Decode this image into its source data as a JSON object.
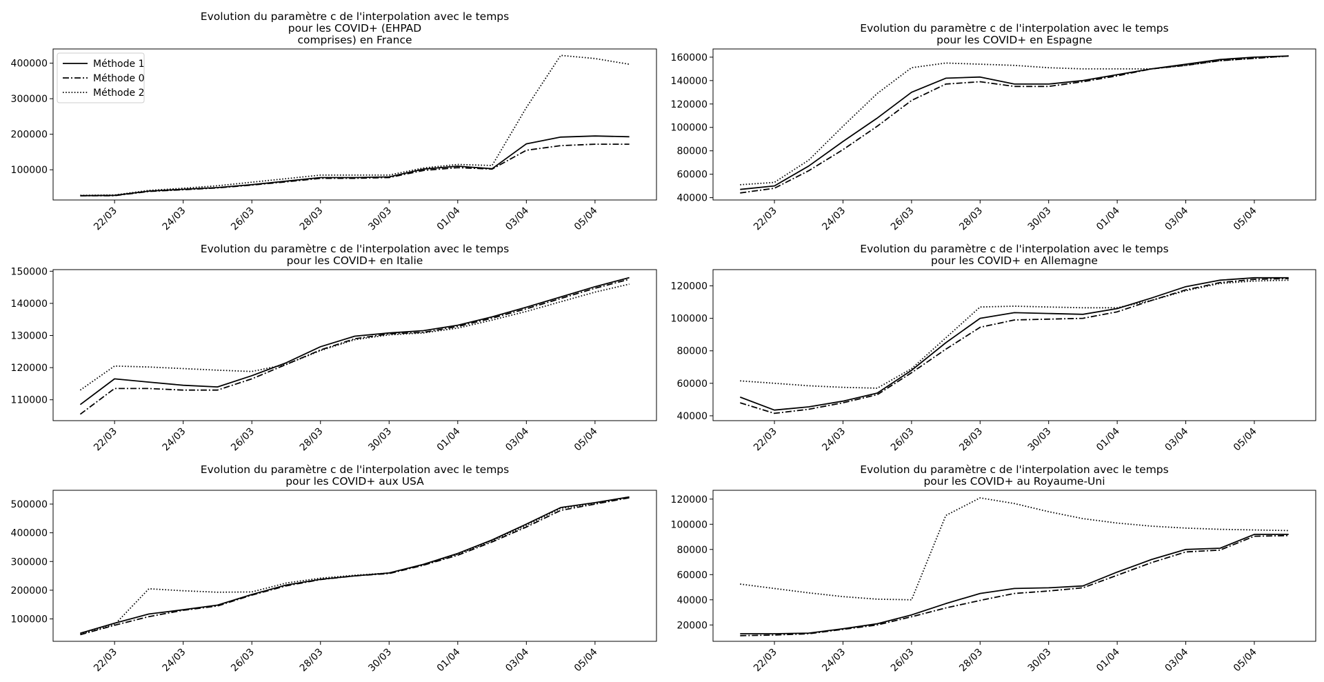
{
  "figure": {
    "legend_entries": [
      "Méthode 1",
      "Méthode 0",
      "Méthode 2"
    ],
    "line_color": "#000000"
  },
  "chart_data": [
    {
      "type": "line",
      "title": [
        "Evolution du paramètre c de l'interpolation avec le temps",
        "pour les COVID+ (EHPAD",
        "comprises) en France"
      ],
      "x_tick_labels": [
        "22/03",
        "24/03",
        "26/03",
        "28/03",
        "30/03",
        "01/04",
        "03/04",
        "05/04"
      ],
      "ylim": [
        15000,
        440000
      ],
      "yticks": [
        100000,
        200000,
        300000,
        400000
      ],
      "legend": "top-left",
      "series": [
        {
          "name": "Méthode 1",
          "style": "solid",
          "values": [
            27000,
            28000,
            40000,
            45000,
            50000,
            58000,
            68000,
            78000,
            78000,
            80000,
            102000,
            110000,
            103000,
            173000,
            192000,
            195000,
            193000
          ]
        },
        {
          "name": "Méthode 0",
          "style": "dashdot",
          "values": [
            27000,
            27000,
            39000,
            44000,
            49000,
            57000,
            66000,
            76000,
            76000,
            78000,
            98000,
            106000,
            102000,
            155000,
            168000,
            172000,
            172000
          ]
        },
        {
          "name": "Méthode 2",
          "style": "dotted",
          "values": [
            28000,
            29000,
            42000,
            48000,
            55000,
            65000,
            75000,
            85000,
            85000,
            85000,
            105000,
            115000,
            112000,
            275000,
            422000,
            413000,
            397000
          ]
        }
      ]
    },
    {
      "type": "line",
      "title": [
        "Evolution du paramètre c de l'interpolation avec le temps",
        "pour les COVID+  en Espagne"
      ],
      "x_tick_labels": [
        "22/03",
        "24/03",
        "26/03",
        "28/03",
        "30/03",
        "01/04",
        "03/04",
        "05/04"
      ],
      "ylim": [
        38000,
        167000
      ],
      "yticks": [
        40000,
        60000,
        80000,
        100000,
        120000,
        140000,
        160000
      ],
      "series": [
        {
          "name": "Méthode 1",
          "style": "solid",
          "values": [
            47000,
            50000,
            67000,
            88000,
            108000,
            130000,
            142000,
            143000,
            137000,
            137000,
            140000,
            145000,
            150000,
            154000,
            158000,
            160000,
            161000
          ]
        },
        {
          "name": "Méthode 0",
          "style": "dashdot",
          "values": [
            44000,
            48000,
            63000,
            81000,
            101000,
            123000,
            137000,
            139000,
            135000,
            135000,
            139000,
            144000,
            150000,
            153000,
            157000,
            159000,
            161000
          ]
        },
        {
          "name": "Méthode 2",
          "style": "dotted",
          "values": [
            51000,
            53000,
            72000,
            101000,
            129000,
            151000,
            155000,
            154000,
            153000,
            151000,
            150000,
            150000,
            150000,
            153000,
            157000,
            159000,
            161000
          ]
        }
      ]
    },
    {
      "type": "line",
      "title": [
        "Evolution du paramètre c de l'interpolation avec le temps",
        "pour les COVID+ en Italie"
      ],
      "x_tick_labels": [
        "22/03",
        "24/03",
        "26/03",
        "28/03",
        "30/03",
        "01/04",
        "03/04",
        "05/04"
      ],
      "ylim": [
        103500,
        150500
      ],
      "yticks": [
        110000,
        120000,
        130000,
        140000,
        150000
      ],
      "series": [
        {
          "name": "Méthode 1",
          "style": "solid",
          "values": [
            108500,
            116500,
            115500,
            114500,
            114000,
            117500,
            121500,
            126500,
            129800,
            130800,
            131500,
            133200,
            135800,
            138800,
            142000,
            145200,
            148000
          ]
        },
        {
          "name": "Méthode 0",
          "style": "dashdot",
          "values": [
            105500,
            113500,
            113500,
            113000,
            113000,
            116500,
            121000,
            125500,
            129000,
            130500,
            131000,
            132800,
            135400,
            138300,
            141500,
            144700,
            147500
          ]
        },
        {
          "name": "Méthode 2",
          "style": "dotted",
          "values": [
            113000,
            120500,
            120200,
            119700,
            119200,
            118800,
            121000,
            125300,
            128700,
            130200,
            130800,
            132300,
            134800,
            137500,
            140500,
            143500,
            146000
          ]
        }
      ]
    },
    {
      "type": "line",
      "title": [
        "Evolution du paramètre c de l'interpolation avec le temps",
        "pour les COVID+ en Allemagne"
      ],
      "x_tick_labels": [
        "22/03",
        "24/03",
        "26/03",
        "28/03",
        "30/03",
        "01/04",
        "03/04",
        "05/04"
      ],
      "ylim": [
        37000,
        130000
      ],
      "yticks": [
        40000,
        60000,
        80000,
        100000,
        120000
      ],
      "series": [
        {
          "name": "Méthode 1",
          "style": "solid",
          "values": [
            51500,
            43500,
            45500,
            49000,
            54000,
            68000,
            85000,
            100000,
            103500,
            103000,
            102500,
            106000,
            112500,
            119500,
            123500,
            125000,
            125000
          ]
        },
        {
          "name": "Méthode 0",
          "style": "dashdot",
          "values": [
            48000,
            41500,
            44000,
            48000,
            53000,
            66500,
            81000,
            94500,
            99000,
            99500,
            100000,
            104000,
            111000,
            117500,
            122000,
            124000,
            124500
          ]
        },
        {
          "name": "Méthode 2",
          "style": "dotted",
          "values": [
            61500,
            60000,
            58500,
            57500,
            57000,
            69000,
            88000,
            107000,
            107500,
            107000,
            106500,
            106500,
            111000,
            117000,
            121500,
            123000,
            123500
          ]
        }
      ]
    },
    {
      "type": "line",
      "title": [
        "Evolution du paramètre c de l'interpolation avec le temps",
        "pour les COVID+ aux USA"
      ],
      "x_tick_labels": [
        "22/03",
        "24/03",
        "26/03",
        "28/03",
        "30/03",
        "01/04",
        "03/04",
        "05/04"
      ],
      "ylim": [
        22000,
        548000
      ],
      "yticks": [
        100000,
        200000,
        300000,
        400000,
        500000
      ],
      "series": [
        {
          "name": "Méthode 1",
          "style": "solid",
          "values": [
            50000,
            85000,
            117000,
            132000,
            148000,
            185000,
            218000,
            238000,
            250000,
            260000,
            290000,
            328000,
            375000,
            430000,
            488000,
            505000,
            525000
          ]
        },
        {
          "name": "Méthode 0",
          "style": "dashdot",
          "values": [
            45000,
            78000,
            108000,
            130000,
            145000,
            183000,
            215000,
            237000,
            250000,
            258000,
            287000,
            322000,
            368000,
            420000,
            478000,
            500000,
            522000
          ]
        },
        {
          "name": "Méthode 2",
          "style": "dotted",
          "values": [
            48000,
            80000,
            205000,
            198000,
            193000,
            194000,
            225000,
            242000,
            252000,
            260000,
            288000,
            325000,
            372000,
            425000,
            485000,
            502000,
            525000
          ]
        }
      ]
    },
    {
      "type": "line",
      "title": [
        "Evolution du paramètre c de l'interpolation avec le temps",
        "pour les COVID+ au Royaume-Uni"
      ],
      "x_tick_labels": [
        "22/03",
        "24/03",
        "26/03",
        "28/03",
        "30/03",
        "01/04",
        "03/04",
        "05/04"
      ],
      "ylim": [
        7000,
        127000
      ],
      "yticks": [
        20000,
        40000,
        60000,
        80000,
        100000,
        120000
      ],
      "series": [
        {
          "name": "Méthode 1",
          "style": "solid",
          "values": [
            13000,
            13000,
            13500,
            17000,
            21000,
            28000,
            37000,
            45000,
            49000,
            49500,
            51000,
            62000,
            72000,
            80000,
            81000,
            92000,
            92000
          ]
        },
        {
          "name": "Méthode 0",
          "style": "dashdot",
          "values": [
            11500,
            12000,
            13000,
            16500,
            20000,
            26500,
            33500,
            39500,
            45000,
            47000,
            49500,
            59500,
            69500,
            78000,
            79500,
            90500,
            91000
          ]
        },
        {
          "name": "Méthode 2",
          "style": "dotted",
          "values": [
            52500,
            49000,
            45500,
            42500,
            40500,
            40000,
            107000,
            121000,
            116500,
            110000,
            104500,
            101000,
            98500,
            97000,
            96000,
            95500,
            95000
          ]
        }
      ]
    }
  ]
}
